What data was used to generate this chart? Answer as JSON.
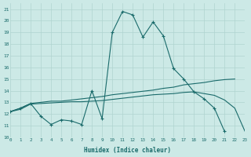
{
  "bg_color": "#cce9e6",
  "line_color": "#1a6b6b",
  "grid_color": "#b0d4d0",
  "xlim": [
    0,
    23
  ],
  "ylim": [
    10,
    21.5
  ],
  "xticks": [
    0,
    1,
    2,
    3,
    4,
    5,
    6,
    7,
    8,
    9,
    10,
    11,
    12,
    13,
    14,
    15,
    16,
    17,
    18,
    19,
    20,
    21,
    22,
    23
  ],
  "yticks": [
    10,
    11,
    12,
    13,
    14,
    15,
    16,
    17,
    18,
    19,
    20,
    21
  ],
  "xlabel": "Humidex (Indice chaleur)",
  "x_main": [
    0,
    1,
    2,
    3,
    4,
    5,
    6,
    7,
    8,
    9,
    10,
    11,
    12,
    13,
    14,
    15,
    16,
    17,
    18,
    19,
    20,
    21
  ],
  "y_main": [
    12.2,
    12.5,
    12.9,
    11.8,
    11.1,
    11.5,
    11.4,
    11.1,
    14.0,
    11.6,
    19.0,
    20.8,
    20.5,
    18.6,
    19.9,
    18.7,
    15.9,
    15.0,
    13.9,
    13.3,
    12.5,
    10.5
  ],
  "x_upper": [
    0,
    1,
    2,
    3,
    4,
    5,
    6,
    7,
    8,
    9,
    10,
    11,
    12,
    13,
    14,
    15,
    16,
    17,
    18,
    19,
    20,
    21,
    22
  ],
  "y_upper": [
    12.2,
    12.5,
    12.9,
    13.0,
    13.1,
    13.1,
    13.2,
    13.3,
    13.4,
    13.5,
    13.65,
    13.75,
    13.85,
    13.95,
    14.05,
    14.2,
    14.3,
    14.5,
    14.6,
    14.7,
    14.85,
    14.95,
    15.0
  ],
  "x_lower": [
    0,
    1,
    2,
    3,
    4,
    5,
    6,
    7,
    8,
    9,
    10,
    11,
    12,
    13,
    14,
    15,
    16,
    17,
    18,
    19,
    20,
    21,
    22,
    23
  ],
  "y_lower": [
    12.2,
    12.4,
    12.85,
    12.9,
    12.95,
    13.0,
    13.05,
    13.05,
    13.1,
    13.15,
    13.25,
    13.35,
    13.45,
    13.55,
    13.65,
    13.7,
    13.75,
    13.85,
    13.9,
    13.75,
    13.6,
    13.2,
    12.5,
    10.5
  ]
}
